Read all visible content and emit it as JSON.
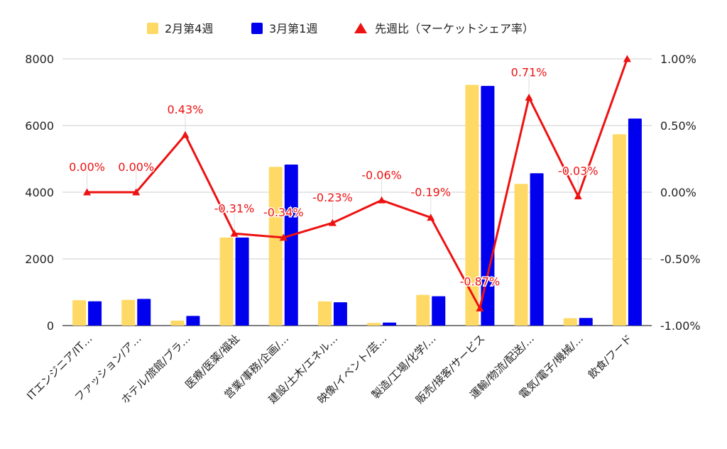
{
  "chart_data": {
    "type": "bar",
    "categories": [
      "ITエンジニア/IT…",
      "ファッション/ア…",
      "ホテル/旅館/ブラ…",
      "医療/医薬/福祉",
      "営業/事務/企画/…",
      "建設/土木/エネル…",
      "映像/イベント/芸…",
      "製造/工場/化学/…",
      "販売/接客/サービス",
      "運輸/物流/配送/…",
      "電気/電子/機械/…",
      "飲食/フード"
    ],
    "series": [
      {
        "name": "2月第4週",
        "kind": "bar",
        "axis": "left",
        "color": "#FFD966",
        "values": [
          760,
          770,
          150,
          2640,
          4760,
          730,
          80,
          920,
          7220,
          4250,
          220,
          5740
        ]
      },
      {
        "name": "3月第1週",
        "kind": "bar",
        "axis": "left",
        "color": "#0000EE",
        "values": [
          730,
          800,
          290,
          2640,
          4830,
          700,
          90,
          880,
          7190,
          4570,
          230,
          6210
        ]
      },
      {
        "name": "先週比（マーケットシェア率）",
        "kind": "line",
        "axis": "right",
        "color": "#EE1111",
        "marker": "triangle",
        "values": [
          0.0,
          0.0,
          0.43,
          -0.31,
          -0.34,
          -0.23,
          -0.06,
          -0.19,
          -0.87,
          0.71,
          -0.03,
          1.0
        ],
        "data_labels": [
          "0.00%",
          "0.00%",
          "0.43%",
          "-0.31%",
          "-0.34%",
          "-0.23%",
          "-0.06%",
          "-0.19%",
          "-0.87%",
          "0.71%",
          "-0.03%",
          ""
        ]
      }
    ],
    "y_left": {
      "min": 0,
      "max": 8000,
      "ticks": [
        "0",
        "2000",
        "4000",
        "6000",
        "8000"
      ]
    },
    "y_right": {
      "min": -1.0,
      "max": 1.0,
      "ticks": [
        "-1.00%",
        "-0.50%",
        "0.00%",
        "0.50%",
        "1.00%"
      ]
    },
    "grid": true,
    "legend_position": "top"
  }
}
